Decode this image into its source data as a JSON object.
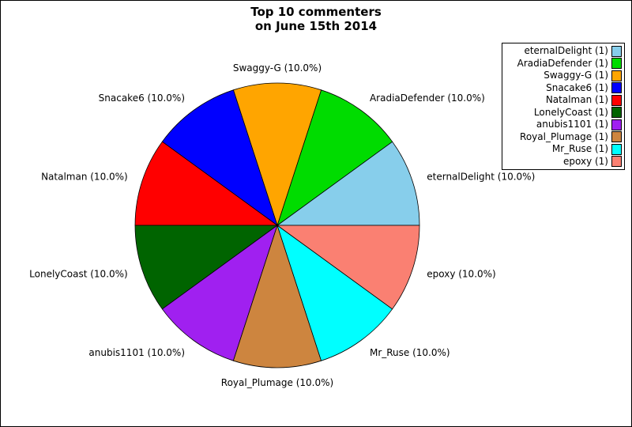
{
  "title": {
    "line1": "Top 10 commenters",
    "line2": "on June 15th 2014"
  },
  "colors": {
    "background": "#ffffff",
    "slice_outline": "#000000",
    "text": "#000000"
  },
  "chart_data": {
    "type": "pie",
    "title": "Top 10 commenters on June 15th 2014",
    "start_angle_deg": 0,
    "direction": "counterclockwise",
    "legend_position": "top-right",
    "labels_show_percent": true,
    "slices": [
      {
        "name": "eternalDelight",
        "value": 1,
        "percent": 10.0,
        "pie_label": "eternalDelight (10.0%)",
        "legend_label": "eternalDelight (1)",
        "color": "#87CEEB"
      },
      {
        "name": "AradiaDefender",
        "value": 1,
        "percent": 10.0,
        "pie_label": "AradiaDefender (10.0%)",
        "legend_label": "AradiaDefender (1)",
        "color": "#00DC00"
      },
      {
        "name": "Swaggy-G",
        "value": 1,
        "percent": 10.0,
        "pie_label": "Swaggy-G (10.0%)",
        "legend_label": "Swaggy-G (1)",
        "color": "#FFA500"
      },
      {
        "name": "Snacake6",
        "value": 1,
        "percent": 10.0,
        "pie_label": "Snacake6 (10.0%)",
        "legend_label": "Snacake6 (1)",
        "color": "#0000FF"
      },
      {
        "name": "Natalman",
        "value": 1,
        "percent": 10.0,
        "pie_label": "Natalman (10.0%)",
        "legend_label": "Natalman (1)",
        "color": "#FF0000"
      },
      {
        "name": "LonelyCoast",
        "value": 1,
        "percent": 10.0,
        "pie_label": "LonelyCoast (10.0%)",
        "legend_label": "LonelyCoast (1)",
        "color": "#006400"
      },
      {
        "name": "anubis1101",
        "value": 1,
        "percent": 10.0,
        "pie_label": "anubis1101 (10.0%)",
        "legend_label": "anubis1101 (1)",
        "color": "#A020F0"
      },
      {
        "name": "Royal_Plumage",
        "value": 1,
        "percent": 10.0,
        "pie_label": "Royal_Plumage (10.0%)",
        "legend_label": "Royal_Plumage (1)",
        "color": "#CD853F"
      },
      {
        "name": "Mr_Ruse",
        "value": 1,
        "percent": 10.0,
        "pie_label": "Mr_Ruse (10.0%)",
        "legend_label": "Mr_Ruse (1)",
        "color": "#00FFFF"
      },
      {
        "name": "epoxy",
        "value": 1,
        "percent": 10.0,
        "pie_label": "epoxy (10.0%)",
        "legend_label": "epoxy (1)",
        "color": "#FA8072"
      }
    ]
  }
}
